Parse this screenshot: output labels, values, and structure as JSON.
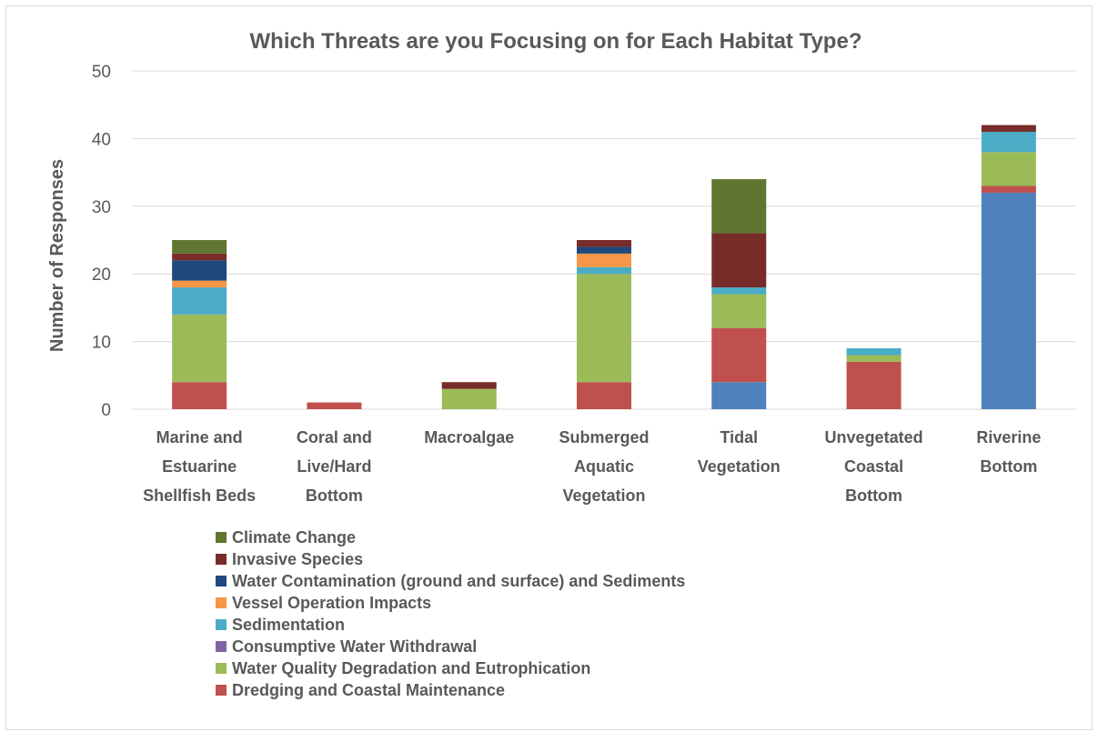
{
  "chart_data": {
    "type": "bar",
    "stacked": true,
    "title": "Which Threats are you Focusing on for Each Habitat Type?",
    "xlabel": "",
    "ylabel": "Number of Responses",
    "ylim": [
      0,
      50
    ],
    "yticks": [
      0,
      10,
      20,
      30,
      40,
      50
    ],
    "grid": true,
    "legend_position": "bottom",
    "categories": [
      [
        "Marine and",
        "Estuarine",
        "Shellfish Beds"
      ],
      [
        "Coral and",
        "Live/Hard",
        "Bottom"
      ],
      [
        "Macroalgae"
      ],
      [
        "Submerged",
        "Aquatic",
        "Vegetation"
      ],
      [
        "Tidal",
        "Vegetation"
      ],
      [
        "Unvegetated",
        "Coastal",
        "Bottom"
      ],
      [
        "Riverine",
        "Bottom"
      ]
    ],
    "series": [
      {
        "name": "Unlabeled",
        "color": "#4f81bd",
        "values": [
          0,
          0,
          0,
          0,
          4,
          0,
          32
        ],
        "in_legend": false
      },
      {
        "name": "Dredging and Coastal Maintenance",
        "color": "#c0504d",
        "values": [
          4,
          1,
          0,
          4,
          8,
          7,
          1
        ],
        "in_legend": true
      },
      {
        "name": "Water Quality Degradation and Eutrophication",
        "color": "#9bbb59",
        "values": [
          10,
          0,
          3,
          16,
          5,
          1,
          5
        ],
        "in_legend": true
      },
      {
        "name": "Consumptive Water Withdrawal",
        "color": "#8064a2",
        "values": [
          0,
          0,
          0,
          0,
          0,
          0,
          0
        ],
        "in_legend": true
      },
      {
        "name": "Sedimentation",
        "color": "#4bacc6",
        "values": [
          4,
          0,
          0,
          1,
          1,
          1,
          3
        ],
        "in_legend": true
      },
      {
        "name": "Vessel Operation Impacts",
        "color": "#f79646",
        "values": [
          1,
          0,
          0,
          2,
          0,
          0,
          0
        ],
        "in_legend": true
      },
      {
        "name": "Water Contamination (ground and surface) and Sediments",
        "color": "#1f497d",
        "values": [
          3,
          0,
          0,
          1,
          0,
          0,
          0
        ],
        "in_legend": true
      },
      {
        "name": "Invasive Species",
        "color": "#772c2a",
        "values": [
          1,
          0,
          1,
          1,
          8,
          0,
          1
        ],
        "in_legend": true
      },
      {
        "name": "Climate Change",
        "color": "#5f7530",
        "values": [
          2,
          0,
          0,
          0,
          8,
          0,
          0
        ],
        "in_legend": true
      }
    ],
    "legend_order": [
      "Climate Change",
      "Invasive Species",
      "Water Contamination (ground and surface) and Sediments",
      "Vessel Operation Impacts",
      "Sedimentation",
      "Consumptive Water Withdrawal",
      "Water Quality Degradation and Eutrophication",
      "Dredging and Coastal Maintenance"
    ]
  }
}
